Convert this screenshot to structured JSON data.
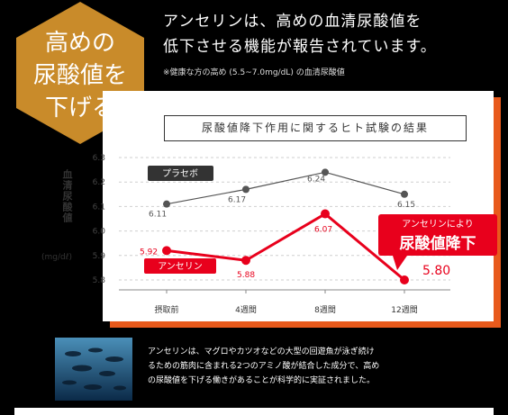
{
  "badge": {
    "lines": [
      "高めの",
      "尿酸値を",
      "下げる"
    ]
  },
  "headline": {
    "lines": [
      "アンセリンは、高めの血清尿酸値を",
      "低下させる機能が報告されています。"
    ]
  },
  "note": "※健康な方の高め (5.5~7.0mg/dL) の血清尿酸値",
  "colors": {
    "orange": "#e85a1c",
    "red": "#e8001c",
    "gray": "#555555",
    "gold": "#c98b2a"
  },
  "chart_data": {
    "type": "line",
    "title": "尿酸値降下作用に関するヒト試験の結果",
    "ylabel": "血清尿酸値",
    "yunit": "(mg/dℓ)",
    "categories": [
      "摂取前",
      "4週間",
      "8週間",
      "12週間"
    ],
    "ylim": [
      5.8,
      6.3
    ],
    "yticks": [
      "6.3",
      "6.2",
      "6.1",
      "6.0",
      "5.9",
      "5.8"
    ],
    "series": [
      {
        "name": "プラセボ",
        "values": [
          6.11,
          6.17,
          6.24,
          6.15
        ],
        "labels": [
          "6.11",
          "6.17",
          "6.24",
          "6.15"
        ]
      },
      {
        "name": "アンセリン",
        "values": [
          5.92,
          5.88,
          6.07,
          5.8
        ],
        "labels": [
          "5.92",
          "5.88",
          "6.07",
          "5.80"
        ]
      }
    ],
    "callout": {
      "line1": "アンセリンにより",
      "line2": "尿酸値降下"
    }
  },
  "info": {
    "lines": [
      "アンセリンは、マグロやカツオなどの大型の回遊魚が泳ぎ続け",
      "るための筋肉に含まれる2つのアミノ酸が結合した成分で、高め",
      "の尿酸値を下げる働きがあることが科学的に実証されました。"
    ]
  }
}
